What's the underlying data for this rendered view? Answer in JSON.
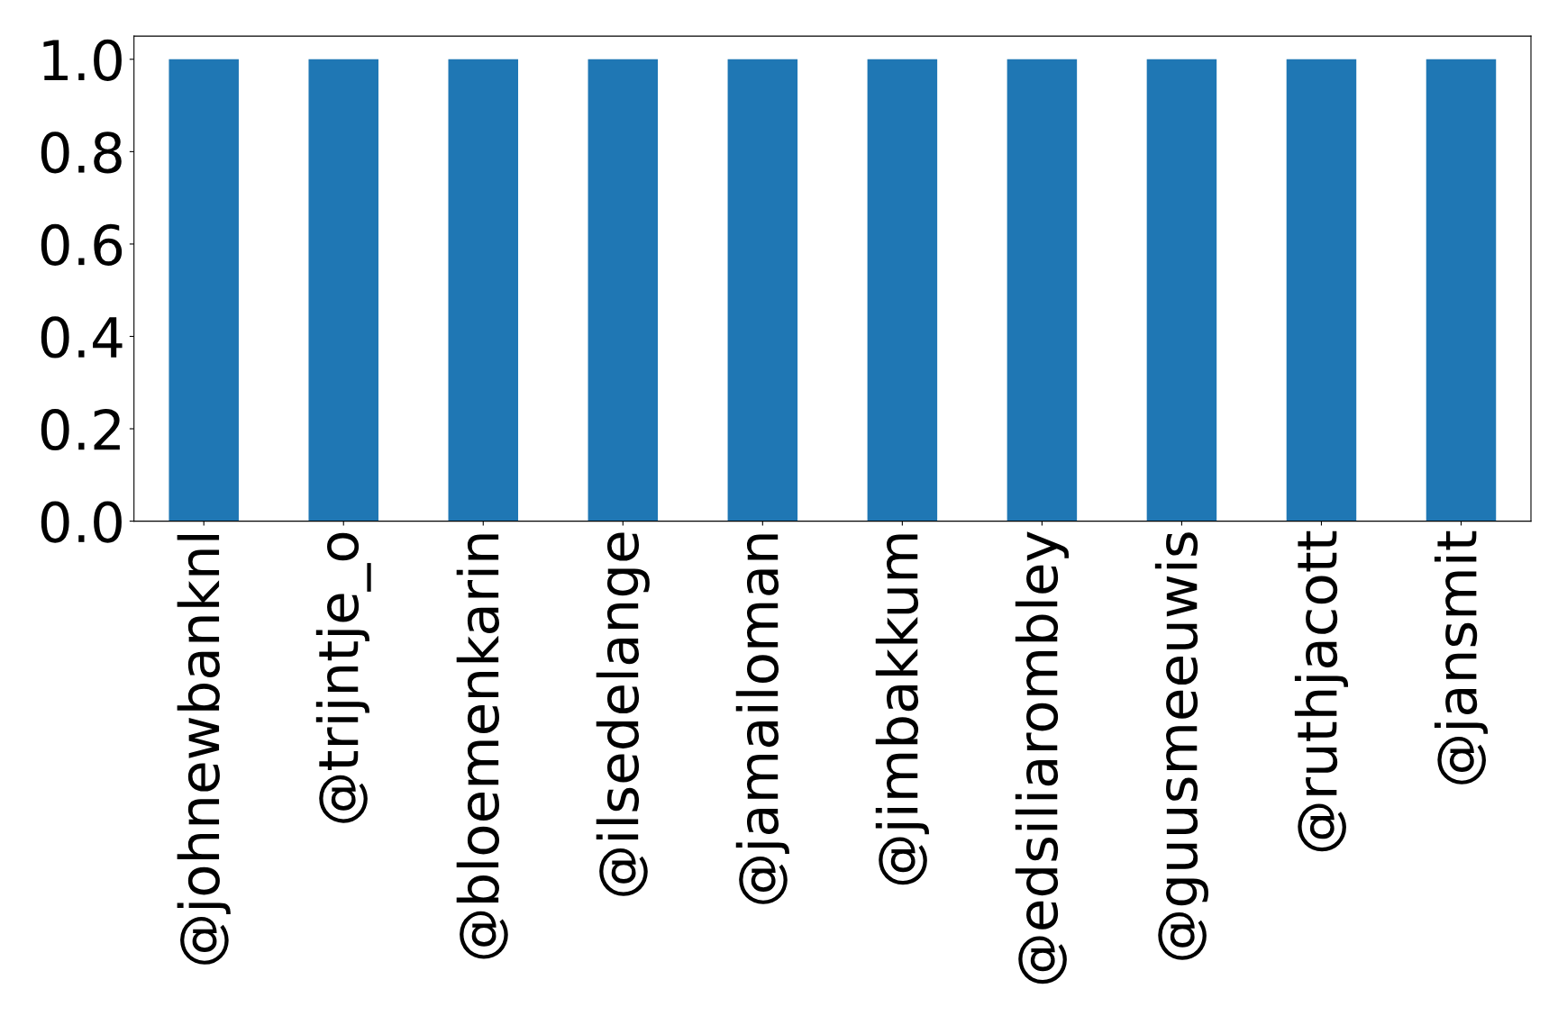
{
  "chart_data": {
    "type": "bar",
    "categories": [
      "@johnewbanknl",
      "@trijntje_o",
      "@bloemenkarin",
      "@ilsedelange",
      "@jamailoman",
      "@jimbakkum",
      "@edsiliarombley",
      "@guusmeeuwis",
      "@ruthjacott",
      "@jansmit"
    ],
    "values": [
      1,
      1,
      1,
      1,
      1,
      1,
      1,
      1,
      1,
      1
    ],
    "color": "#1f77b4",
    "ylim": [
      0,
      1.05
    ],
    "yticks": [
      {
        "value": 0,
        "label": "0.0"
      },
      {
        "value": 0.2,
        "label": "0.2"
      },
      {
        "value": 0.4,
        "label": "0.4"
      },
      {
        "value": 0.6,
        "label": "0.6"
      },
      {
        "value": 0.8,
        "label": "0.8"
      },
      {
        "value": 1,
        "label": "1.0"
      }
    ],
    "grid": false,
    "legend": false
  }
}
